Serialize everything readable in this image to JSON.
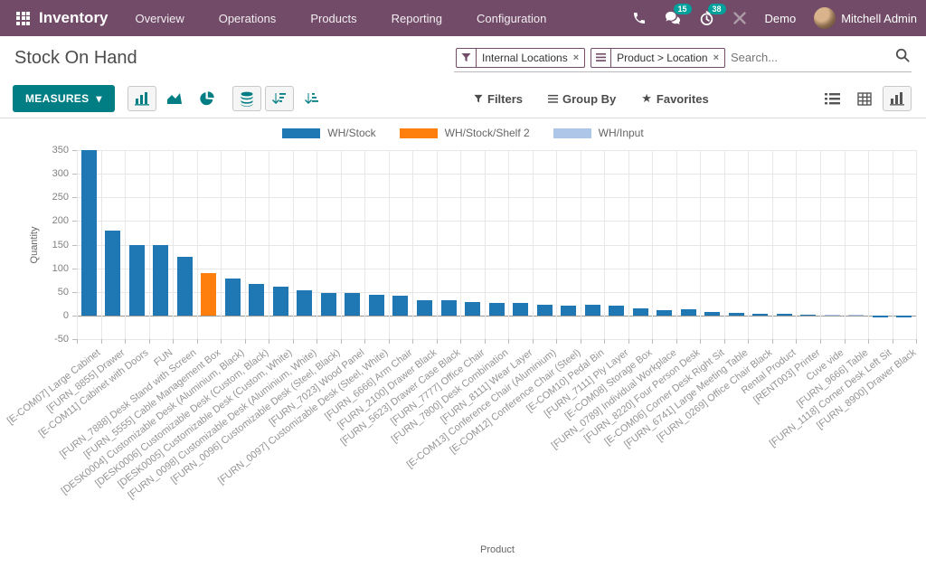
{
  "nav": {
    "app_name": "Inventory",
    "menus": [
      "Overview",
      "Operations",
      "Products",
      "Reporting",
      "Configuration"
    ],
    "messages_count": "15",
    "activities_count": "38",
    "company": "Demo",
    "user_name": "Mitchell Admin"
  },
  "header": {
    "title": "Stock On Hand",
    "search": {
      "facets": [
        {
          "icon": "filter-icon",
          "label": "Internal Locations",
          "close": "x"
        },
        {
          "icon": "group-by-icon",
          "label": "Product > Location",
          "close": "x"
        }
      ],
      "placeholder": "Search..."
    }
  },
  "toolbar": {
    "measures_label": "MEASURES",
    "filters_label": "Filters",
    "group_by_label": "Group By",
    "favorites_label": "Favorites"
  },
  "icons": {
    "star": "★",
    "caret_down": "▾",
    "close": "×"
  },
  "colors": {
    "navbar": "#714B67",
    "primary_button": "#017E84",
    "badge": "#00A09D",
    "series_stock": "#1f77b4",
    "series_shelf2": "#ff7f0e",
    "series_input": "#aec7e8"
  },
  "chart_data": {
    "type": "bar",
    "title": "",
    "xlabel": "Product",
    "ylabel": "Quantity",
    "ylim": [
      -50,
      350
    ],
    "yticks": [
      350,
      300,
      250,
      200,
      150,
      100,
      50,
      0,
      -50
    ],
    "grid": true,
    "legend_position": "top-center",
    "legend": [
      {
        "name": "WH/Stock",
        "color": "#1f77b4"
      },
      {
        "name": "WH/Stock/Shelf 2",
        "color": "#ff7f0e"
      },
      {
        "name": "WH/Input",
        "color": "#aec7e8"
      }
    ],
    "categories": [
      "[E-COM07] Large Cabinet",
      "[FURN_8855] Drawer",
      "[E-COM11] Cabinet with Doors",
      "FUN",
      "[FURN_7888] Desk Stand with Screen",
      "[FURN_5555] Cable Management Box",
      "[DESK0004] Customizable Desk (Aluminium, Black)",
      "[DESK0006] Customizable Desk (Custom, Black)",
      "[DESK0005] Customizable Desk (Custom, White)",
      "[FURN_0098] Customizable Desk (Aluminium, White)",
      "[FURN_0096] Customizable Desk (Steel, Black)",
      "[FURN_7023] Wood Panel",
      "[FURN_0097] Customizable Desk (Steel, White)",
      "[FURN_6666] Arm Chair",
      "[FURN_2100] Drawer Black",
      "[FURN_5623] Drawer Case Black",
      "[FURN_7777] Office Chair",
      "[FURN_7800] Desk Combination",
      "[FURN_8111] Wear Layer",
      "[E-COM13] Conference Chair (Aluminium)",
      "[E-COM12] Conference Chair (Steel)",
      "[E-COM10] Pedal Bin",
      "[FURN_7111] Ply Layer",
      "[E-COM08] Storage Box",
      "[FURN_0789] Individual Workplace",
      "[FURN_8220] Four Person Desk",
      "[E-COM06] Corner Desk Right Sit",
      "[FURN_6741] Large Meeting Table",
      "[FURN_0269] Office Chair Black",
      "Rental Product",
      "[RENT003] Printer",
      "Cuve vide",
      "[FURN_9666] Table",
      "[FURN_1118] Corner Desk Left Sit",
      "[FURN_8900] Drawer Black"
    ],
    "values": [
      350,
      180,
      150,
      150,
      125,
      90,
      78,
      67,
      62,
      53,
      48,
      47,
      44,
      42,
      33,
      32,
      29,
      27,
      27,
      22,
      21,
      22,
      20,
      15,
      12,
      13,
      8,
      6,
      4,
      4,
      2,
      2,
      1,
      -5,
      -5
    ],
    "series_index": [
      0,
      0,
      0,
      0,
      0,
      1,
      0,
      0,
      0,
      0,
      0,
      0,
      0,
      0,
      0,
      0,
      0,
      0,
      0,
      0,
      0,
      0,
      0,
      0,
      0,
      0,
      0,
      0,
      0,
      0,
      0,
      2,
      2,
      0,
      0
    ]
  }
}
